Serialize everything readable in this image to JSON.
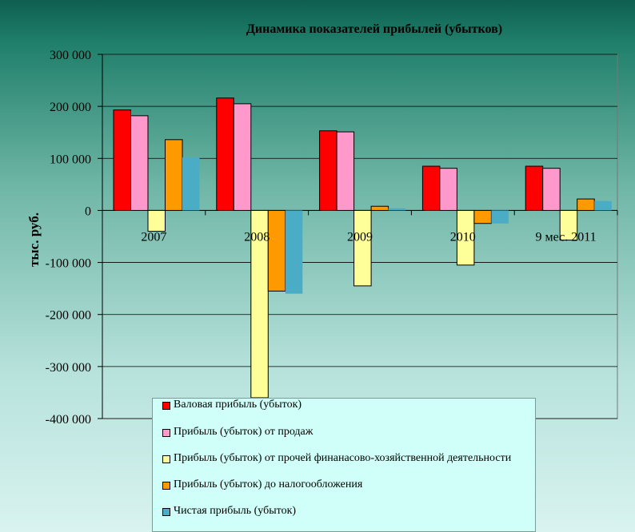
{
  "chart_data": {
    "type": "bar",
    "title": "Динамика показателей прибылей (убытков)",
    "ylabel": "тыс. руб.",
    "xlabel": "",
    "ylim": [
      -400000,
      300000
    ],
    "yticks": [
      300000,
      200000,
      100000,
      0,
      -100000,
      -200000,
      -300000,
      -400000
    ],
    "ytick_labels": [
      "300 000",
      "200 000",
      "100 000",
      "0",
      "-100 000",
      "-200 000",
      "-300 000",
      "-400 000"
    ],
    "categories": [
      "2007",
      "2008",
      "2009",
      "2010",
      "9 мес. 2011"
    ],
    "grid": true,
    "legend_position": "bottom",
    "series": [
      {
        "name": "Валовая прибыль (убыток)",
        "color": "#ff0000",
        "values": [
          193000,
          216000,
          153000,
          85000,
          85000
        ]
      },
      {
        "name": "Прибыль  (убыток) от продаж",
        "color": "#ff99cc",
        "values": [
          182000,
          205000,
          151000,
          81000,
          81000
        ]
      },
      {
        "name": "Прибыль (убыток) от прочей финанасово-хозяйственной деятельности",
        "color": "#ffff99",
        "values": [
          -40000,
          -360000,
          -145000,
          -105000,
          -57000
        ]
      },
      {
        "name": "Прибыль (убыток)  до налогообложения",
        "color": "#ff9900",
        "values": [
          136000,
          -155000,
          8000,
          -25000,
          22000
        ]
      },
      {
        "name": "Чистая прибыль (убыток)",
        "color": "#4bacc6",
        "values": [
          102000,
          -160000,
          4000,
          -25000,
          18000
        ]
      }
    ]
  }
}
